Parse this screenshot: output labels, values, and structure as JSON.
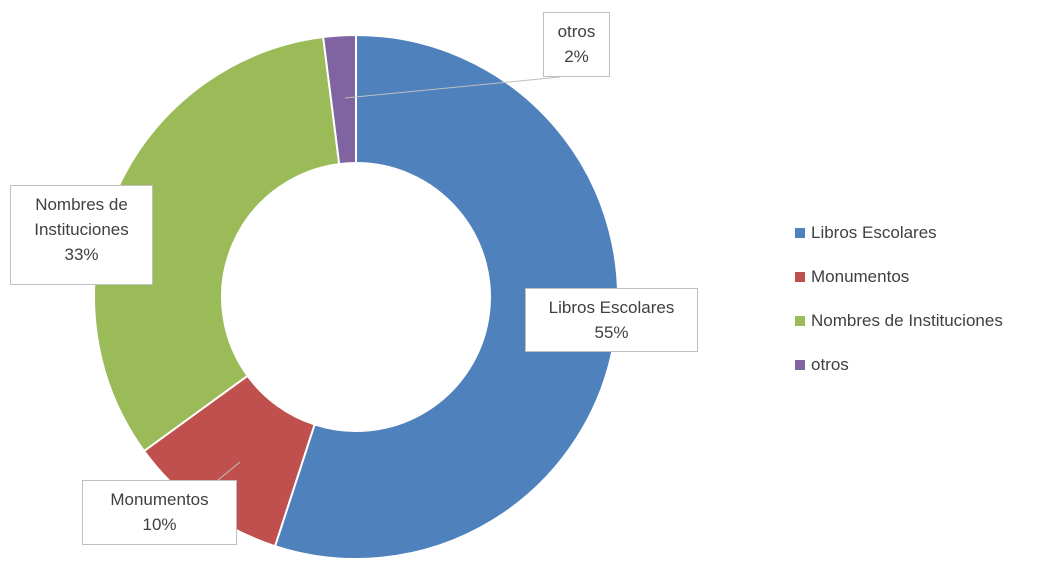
{
  "chart_data": {
    "type": "donut",
    "categories": [
      "Libros Escolares",
      "Monumentos",
      "Nombres de Instituciones",
      "otros"
    ],
    "values": [
      55,
      10,
      33,
      2
    ],
    "value_labels": [
      "55%",
      "10%",
      "33%",
      "2%"
    ],
    "colors": [
      "#4f81bd",
      "#c0504d",
      "#9bbb59",
      "#8064a2"
    ],
    "legend": "right"
  }
}
